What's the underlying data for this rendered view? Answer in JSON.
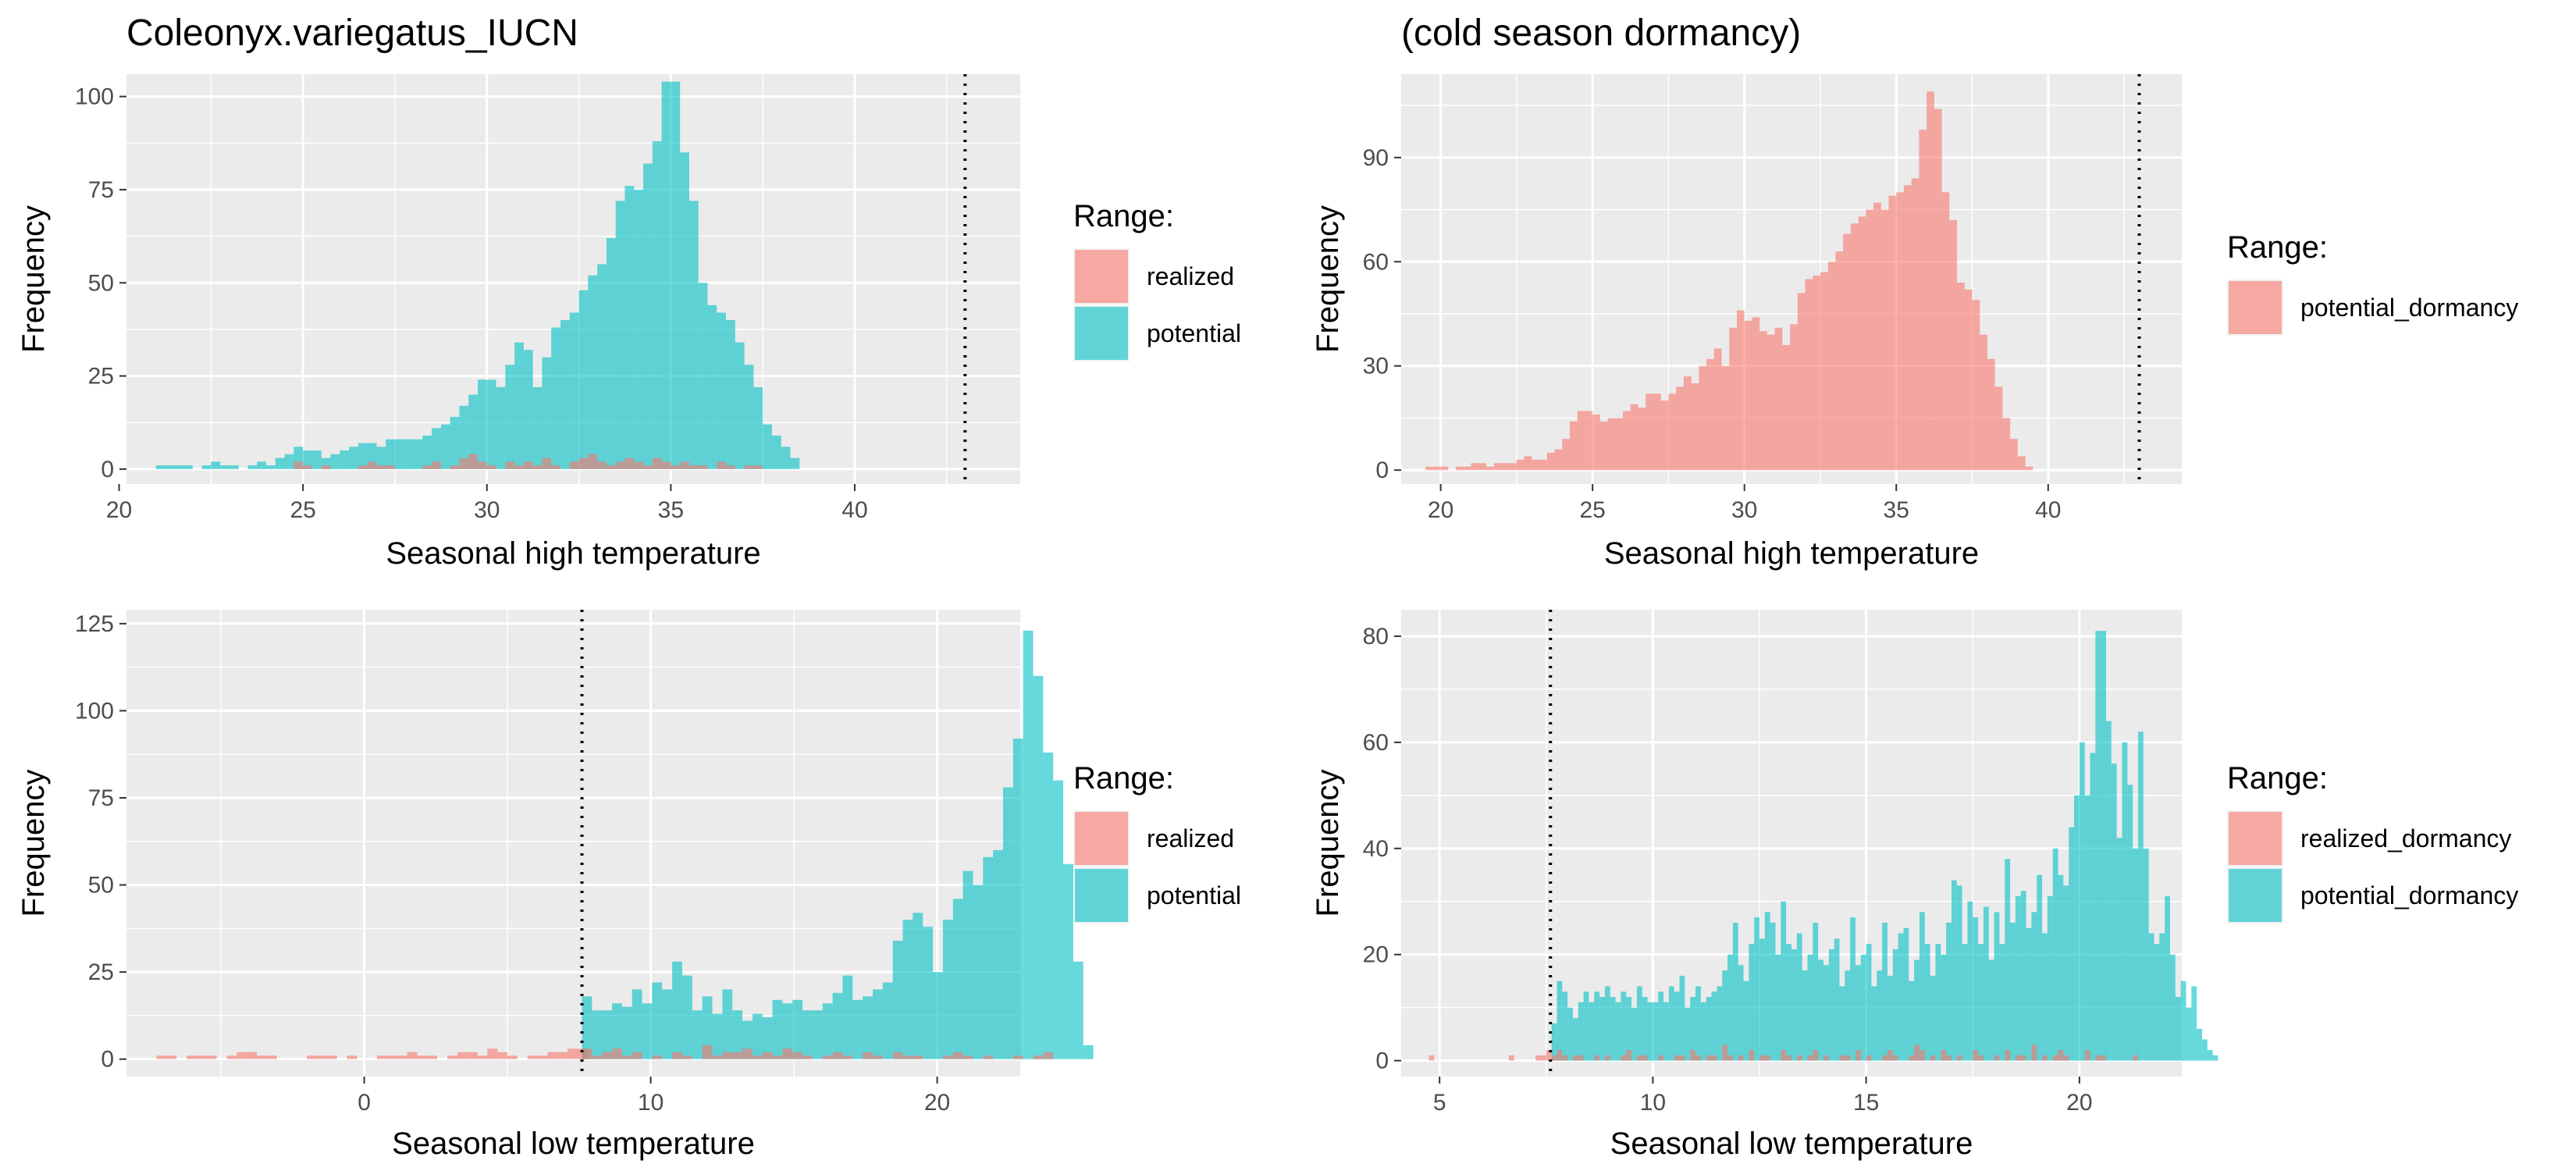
{
  "colors": {
    "realized": "#F8766D",
    "potential": "#00BFC4",
    "panel_bg": "#EBEBEB",
    "grid": "#FFFFFF",
    "overlap": "#7F8F8E"
  },
  "chart_data": [
    {
      "id": "top-left",
      "type": "histogram",
      "title": "Coleonyx.variegatus_IUCN",
      "xlabel": "Seasonal high temperature",
      "ylabel": "Frequency",
      "xlim": [
        20.2,
        44.5
      ],
      "ylim": [
        -4,
        106
      ],
      "xticks": [
        20,
        25,
        30,
        35,
        40
      ],
      "yticks": [
        0,
        25,
        50,
        75,
        100
      ],
      "binwidth": 0.25,
      "threshold": 43.0,
      "legend_title": "Range:",
      "legend_items": [
        {
          "label": "realized",
          "color_key": "realized"
        },
        {
          "label": "potential",
          "color_key": "potential"
        }
      ],
      "series": [
        {
          "name": "potential",
          "color_key": "potential",
          "x_start": 21.0,
          "values": [
            1,
            1,
            1,
            1,
            0,
            1,
            2,
            1,
            1,
            0,
            1,
            2,
            1,
            3,
            4,
            6,
            5,
            5,
            3,
            4,
            5,
            6,
            7,
            7,
            6,
            8,
            8,
            8,
            8,
            9,
            11,
            12,
            14,
            17,
            20,
            24,
            24,
            22,
            28,
            34,
            32,
            22,
            30,
            38,
            40,
            42,
            48,
            52,
            55,
            62,
            72,
            76,
            75,
            82,
            88,
            104,
            104,
            85,
            72,
            50,
            44,
            42,
            40,
            34,
            28,
            22,
            12,
            9,
            6,
            3,
            0
          ]
        },
        {
          "name": "realized",
          "color_key": "realized",
          "x_start": 21.0,
          "values": [
            0,
            0,
            0,
            0,
            0,
            0,
            0,
            0,
            0,
            0,
            0,
            0,
            0,
            0,
            0,
            2,
            1,
            0,
            1,
            0,
            0,
            0,
            1,
            2,
            1,
            1,
            0,
            0,
            0,
            1,
            2,
            0,
            1,
            3,
            4,
            2,
            1,
            0,
            2,
            1,
            2,
            1,
            3,
            1,
            0,
            2,
            3,
            4,
            2,
            1,
            2,
            3,
            2,
            1,
            3,
            2,
            1,
            2,
            1,
            1,
            0,
            2,
            1,
            0,
            1,
            1,
            0,
            0,
            0,
            0,
            0
          ]
        }
      ]
    },
    {
      "id": "top-right",
      "type": "histogram",
      "title": "(cold season dormancy)",
      "xlabel": "Seasonal high temperature",
      "ylabel": "Frequency",
      "xlim": [
        18.7,
        44.4
      ],
      "ylim": [
        -4,
        114
      ],
      "xticks": [
        20,
        25,
        30,
        35,
        40
      ],
      "yticks": [
        0,
        30,
        60,
        90
      ],
      "binwidth": 0.25,
      "threshold": 43.0,
      "legend_title": "Range:",
      "legend_items": [
        {
          "label": "potential_dormancy",
          "color_key": "realized"
        }
      ],
      "series": [
        {
          "name": "potential_dormancy",
          "color_key": "realized",
          "x_start": 19.5,
          "values": [
            1,
            1,
            1,
            0,
            1,
            1,
            2,
            2,
            1,
            2,
            2,
            2,
            3,
            4,
            3,
            3,
            5,
            6,
            9,
            14,
            17,
            17,
            16,
            14,
            15,
            15,
            17,
            19,
            18,
            22,
            22,
            20,
            22,
            24,
            27,
            25,
            30,
            32,
            35,
            30,
            41,
            46,
            43,
            44,
            40,
            39,
            41,
            36,
            42,
            51,
            55,
            56,
            57,
            60,
            63,
            68,
            71,
            73,
            75,
            77,
            75,
            79,
            80,
            82,
            84,
            98,
            109,
            104,
            80,
            72,
            54,
            52,
            49,
            39,
            32,
            24,
            15,
            9,
            4,
            1,
            0
          ]
        }
      ]
    },
    {
      "id": "bottom-left",
      "type": "histogram",
      "title": "",
      "xlabel": "Seasonal low temperature",
      "ylabel": "Frequency",
      "xlim": [
        -8.3,
        22.9
      ],
      "ylim": [
        -5,
        129
      ],
      "xticks": [
        0,
        10,
        20
      ],
      "yticks": [
        0,
        25,
        50,
        75,
        100,
        125
      ],
      "binwidth": 0.35,
      "threshold": 7.6,
      "legend_title": "Range:",
      "legend_items": [
        {
          "label": "realized",
          "color_key": "realized"
        },
        {
          "label": "potential",
          "color_key": "potential"
        }
      ],
      "series": [
        {
          "name": "realized",
          "color_key": "realized",
          "x_start": -7.25,
          "values": [
            1,
            1,
            0,
            1,
            1,
            1,
            0,
            1,
            2,
            2,
            1,
            1,
            0,
            0,
            0,
            1,
            1,
            1,
            0,
            1,
            0,
            0,
            1,
            1,
            1,
            2,
            1,
            1,
            0,
            1,
            2,
            2,
            1,
            3,
            2,
            1,
            0,
            1,
            1,
            2,
            2,
            3,
            3
          ]
        },
        {
          "name": "potential",
          "color_key": "potential",
          "x_start": 7.6,
          "values": [
            18,
            14,
            14,
            16,
            15,
            20,
            16,
            22,
            20,
            28,
            24,
            14,
            18,
            13,
            20,
            14,
            11,
            13,
            12,
            17,
            16,
            17,
            14,
            14,
            16,
            19,
            24,
            17,
            18,
            20,
            22,
            34,
            40,
            42,
            38,
            25,
            40,
            46,
            54,
            50,
            58,
            60,
            78,
            92,
            123,
            110,
            88,
            80,
            56,
            28,
            4
          ]
        },
        {
          "name": "realized",
          "color_key": "realized",
          "x_start": 7.6,
          "values": [
            3,
            1,
            2,
            3,
            1,
            2,
            0,
            1,
            0,
            2,
            1,
            0,
            4,
            1,
            2,
            2,
            3,
            1,
            2,
            1,
            3,
            2,
            1,
            0,
            1,
            2,
            1,
            0,
            2,
            1,
            0,
            2,
            1,
            1,
            0,
            0,
            1,
            2,
            1,
            0,
            1,
            0,
            0,
            1,
            0,
            1,
            2,
            0,
            0,
            0,
            0
          ]
        }
      ]
    },
    {
      "id": "bottom-right",
      "type": "histogram",
      "title": "",
      "xlabel": "Seasonal low temperature",
      "ylabel": "Frequency",
      "xlim": [
        4.1,
        22.4
      ],
      "ylim": [
        -3,
        85
      ],
      "xticks": [
        5,
        10,
        15,
        20
      ],
      "yticks": [
        0,
        20,
        40,
        60,
        80
      ],
      "binwidth": 0.125,
      "threshold": 7.6,
      "legend_title": "Range:",
      "legend_items": [
        {
          "label": "realized_dormancy",
          "color_key": "realized"
        },
        {
          "label": "potential_dormancy",
          "color_key": "potential"
        }
      ],
      "series": [
        {
          "name": "realized_dormancy",
          "color_key": "realized",
          "x_start": 4.75,
          "values": [
            1,
            0,
            0,
            0,
            0,
            0,
            0,
            0,
            0,
            0,
            0,
            0,
            0,
            0,
            0,
            1,
            0,
            0,
            0,
            0,
            1,
            1,
            2
          ]
        },
        {
          "name": "potential_dormancy",
          "color_key": "potential",
          "x_start": 7.625,
          "values": [
            7,
            15,
            13,
            10,
            8,
            11,
            13,
            11,
            13,
            12,
            14,
            12,
            11,
            13,
            12,
            10,
            14,
            12,
            11,
            11,
            13,
            11,
            14,
            13,
            16,
            10,
            12,
            14,
            11,
            12,
            13,
            14,
            17,
            20,
            26,
            18,
            15,
            22,
            27,
            23,
            28,
            26,
            20,
            30,
            22,
            21,
            24,
            17,
            20,
            26,
            19,
            18,
            21,
            23,
            14,
            17,
            27,
            18,
            20,
            22,
            14,
            17,
            26,
            16,
            21,
            24,
            25,
            15,
            19,
            28,
            22,
            16,
            22,
            20,
            26,
            34,
            33,
            22,
            30,
            27,
            22,
            29,
            19,
            28,
            22,
            38,
            26,
            31,
            32,
            25,
            28,
            35,
            24,
            31,
            40,
            35,
            33,
            44,
            50,
            60,
            50,
            58,
            81,
            81,
            64,
            56,
            42,
            60,
            52,
            40,
            62,
            40,
            24,
            22,
            24,
            31,
            20,
            12,
            15,
            10,
            14,
            6,
            4,
            2,
            1
          ]
        },
        {
          "name": "realized_dormancy",
          "color_key": "realized",
          "x_start": 7.625,
          "values": [
            1,
            2,
            1,
            0,
            1,
            1,
            0,
            0,
            1,
            0,
            1,
            0,
            0,
            1,
            2,
            0,
            1,
            1,
            0,
            0,
            1,
            0,
            0,
            1,
            1,
            0,
            2,
            1,
            0,
            1,
            1,
            0,
            3,
            1,
            0,
            1,
            0,
            2,
            0,
            1,
            1,
            0,
            0,
            2,
            1,
            0,
            1,
            0,
            1,
            2,
            0,
            1,
            0,
            0,
            1,
            1,
            0,
            2,
            0,
            1,
            0,
            0,
            1,
            2,
            1,
            0,
            0,
            1,
            3,
            2,
            0,
            1,
            0,
            2,
            1,
            0,
            1,
            0,
            0,
            2,
            1,
            0,
            0,
            1,
            0,
            2,
            0,
            1,
            1,
            0,
            3,
            0,
            1,
            0,
            1,
            2,
            1,
            0,
            0,
            0,
            2,
            0,
            1,
            1,
            0,
            0,
            0,
            0,
            0,
            1,
            0,
            0,
            0,
            0,
            0,
            0,
            0,
            0,
            0,
            0,
            0,
            0,
            0,
            0,
            0
          ]
        }
      ]
    }
  ]
}
